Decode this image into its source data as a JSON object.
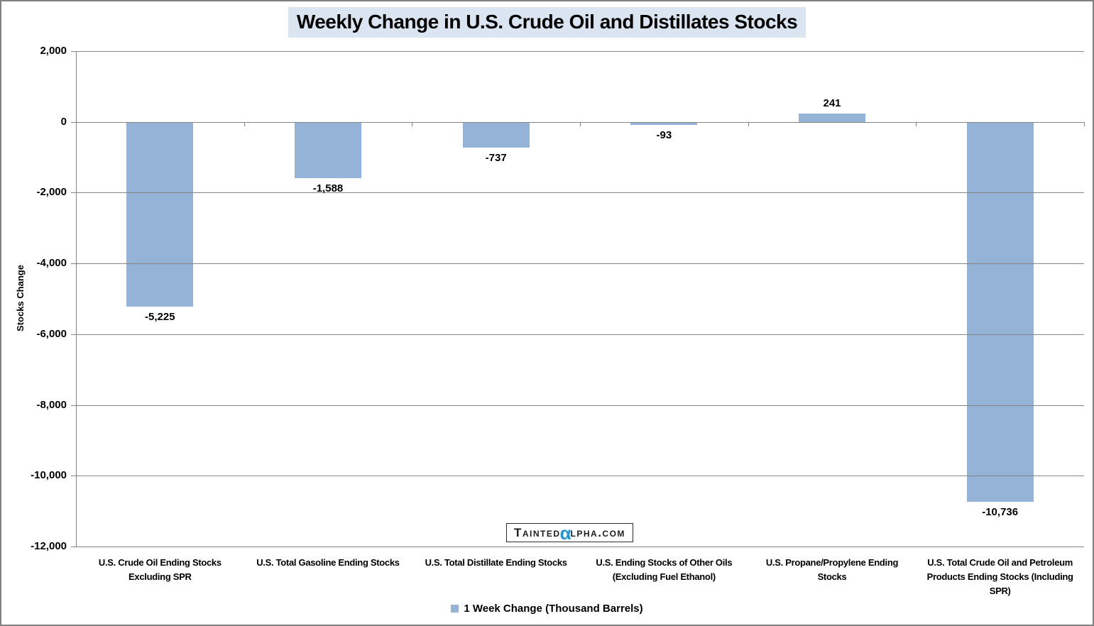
{
  "header": {
    "title": "Weekly Change in U.S. Crude Oil and Distillates Stocks"
  },
  "watermark": {
    "prefix": "Tainted",
    "alpha": "α",
    "suffix": "lpha.com"
  },
  "legend": {
    "label": "1 Week Change (Thousand Barrels)"
  },
  "chart_data": {
    "type": "bar",
    "title": "Weekly Change in U.S. Crude Oil and Distillates Stocks",
    "ylabel": "Stocks Change",
    "xlabel": "",
    "categories": [
      "U.S. Crude Oil Ending Stocks Excluding SPR",
      "U.S. Total Gasoline Ending Stocks",
      "U.S. Total Distillate Ending Stocks",
      "U.S. Ending Stocks of Other Oils (Excluding Fuel Ethanol)",
      "U.S. Propane/Propylene Ending Stocks",
      "U.S. Total Crude Oil and Petroleum Products Ending Stocks (Including SPR)"
    ],
    "values": [
      -5225,
      -1588,
      -737,
      -93,
      241,
      -10736
    ],
    "data_labels": [
      "-5,225",
      "-1,588",
      "-737",
      "-93",
      "241",
      "-10,736"
    ],
    "series_name": "1 Week Change (Thousand Barrels)",
    "ylim": [
      -12000,
      2000
    ],
    "ytick_values": [
      2000,
      0,
      -2000,
      -4000,
      -6000,
      -8000,
      -10000,
      -12000
    ],
    "ytick_labels": [
      "2,000",
      "0",
      "-2,000",
      "-4,000",
      "-6,000",
      "-8,000",
      "-10,000",
      "-12,000"
    ],
    "grid": true,
    "legend_position": "bottom"
  },
  "colors": {
    "bar": "#95B3D7",
    "grid": "#858585",
    "axis": "#858585",
    "title_bg": "#DBE5F1",
    "alpha_glyph": "#2196D3",
    "frame_border": "#808080",
    "text": "#000000"
  }
}
